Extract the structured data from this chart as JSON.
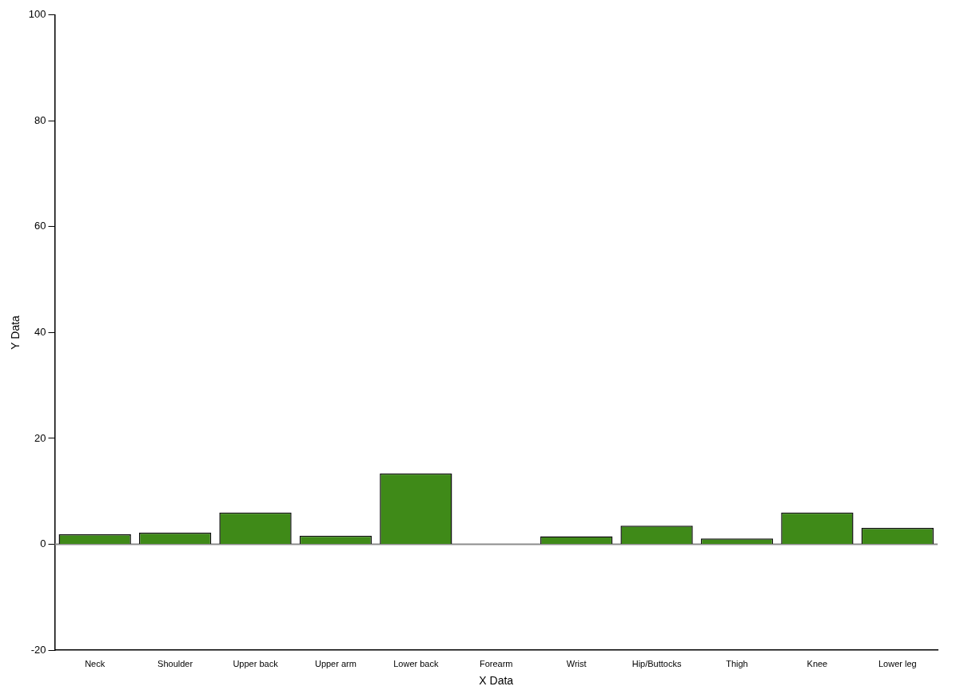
{
  "chart_data": {
    "type": "bar",
    "xlabel": "X Data",
    "ylabel": "Y Data",
    "categories": [
      "Neck",
      "Shoulder",
      "Upper back",
      "Upper arm",
      "Lower back",
      "Forearm",
      "Wrist",
      "Hip/Buttocks",
      "Thigh",
      "Knee",
      "Lower leg"
    ],
    "values": [
      1.9,
      2.2,
      6.0,
      1.6,
      13.4,
      0,
      1.5,
      3.5,
      1.1,
      6.0,
      3.1
    ],
    "color": "#3f8a18",
    "ylim": [
      -20,
      100
    ],
    "yticks": [
      -20,
      0,
      20,
      40,
      60,
      80,
      100
    ],
    "ref_lines": [
      {
        "axis": "y",
        "value": 0,
        "color": "#8c8c8c"
      }
    ],
    "grid": false,
    "legend": false
  }
}
